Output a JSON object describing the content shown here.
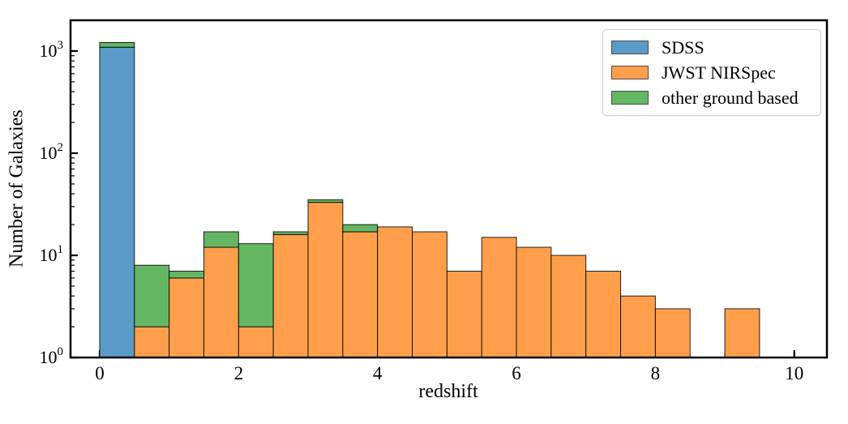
{
  "figure": {
    "xlabel": "redshift",
    "ylabel": "Number of Galaxies"
  },
  "legend": {
    "position": "upper right",
    "items": [
      {
        "label": "SDSS",
        "color": "#5A9BC8"
      },
      {
        "label": "JWST NIRSpec",
        "color": "#FF9F4C"
      },
      {
        "label": "other ground based",
        "color": "#63B763"
      }
    ]
  },
  "chart_data": {
    "type": "bar",
    "subtype": "stacked_histogram",
    "title": "",
    "xlabel": "redshift",
    "ylabel": "Number of Galaxies",
    "yscale": "log",
    "grid": false,
    "legend_position": "upper right",
    "xlim": [
      -0.42,
      10.47
    ],
    "ylim": [
      1,
      2000
    ],
    "x_ticks": [
      0,
      2,
      4,
      6,
      8,
      10
    ],
    "x_minor_ticks": [
      1,
      3,
      5,
      7,
      9
    ],
    "y_ticks": [
      1,
      10,
      100,
      1000
    ],
    "bin_width": 0.5,
    "bin_starts": [
      0,
      0.5,
      1,
      1.5,
      2,
      2.5,
      3,
      3.5,
      4,
      4.5,
      5,
      5.5,
      6,
      6.5,
      7,
      7.5,
      8,
      8.5,
      9
    ],
    "series": [
      {
        "name": "SDSS",
        "color": "#5A9BC8",
        "values": [
          1090,
          0,
          0,
          0,
          0,
          0,
          0,
          0,
          0,
          0,
          0,
          0,
          0,
          0,
          0,
          0,
          0,
          0,
          0
        ]
      },
      {
        "name": "JWST NIRSpec",
        "color": "#FF9F4C",
        "values": [
          0,
          2,
          6,
          12,
          2,
          16,
          33,
          17,
          19,
          17,
          7,
          15,
          12,
          10,
          7,
          4,
          3,
          0,
          3
        ]
      },
      {
        "name": "other ground based",
        "color": "#63B763",
        "values": [
          120,
          6,
          1,
          5,
          11,
          1,
          2,
          3,
          0,
          0,
          0,
          0,
          0,
          0,
          0,
          0,
          0,
          0,
          0
        ]
      }
    ],
    "edge_color": "rgba(0,0,0,0.85)"
  }
}
